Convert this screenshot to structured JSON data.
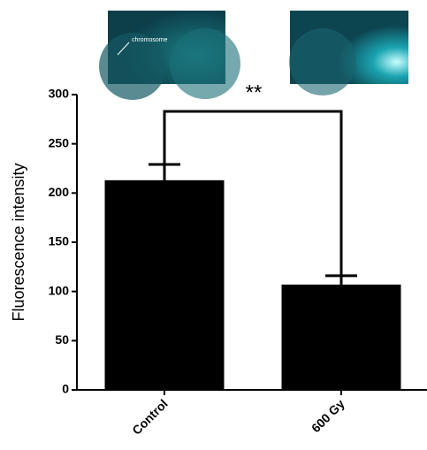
{
  "chart_data": {
    "type": "bar",
    "y_label": "Fluorescence intensity",
    "categories": [
      "Control",
      "600 Gy"
    ],
    "values": [
      213,
      107
    ],
    "errors": [
      16,
      9
    ],
    "color": "#000000",
    "ylim": [
      0,
      300
    ],
    "yticks": [
      0,
      50,
      100,
      150,
      200,
      250,
      300
    ],
    "annotation": "**",
    "image_label": "chromosome"
  }
}
